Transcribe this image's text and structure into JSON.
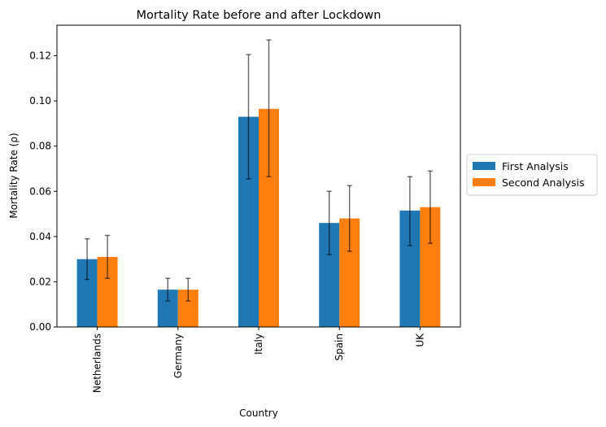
{
  "chart_data": {
    "type": "bar",
    "title": "Mortality Rate before and after Lockdown",
    "xlabel": "Country",
    "ylabel": "Mortality Rate (ρ)",
    "categories": [
      "Netherlands",
      "Germany",
      "Italy",
      "Spain",
      "UK"
    ],
    "series": [
      {
        "name": "First Analysis",
        "color": "#1f77b4",
        "values": [
          0.03,
          0.0165,
          0.093,
          0.046,
          0.0515
        ],
        "err_low": [
          0.021,
          0.0115,
          0.0655,
          0.032,
          0.036
        ],
        "err_high": [
          0.039,
          0.0215,
          0.1205,
          0.06,
          0.0665
        ]
      },
      {
        "name": "Second Analysis",
        "color": "#ff7f0e",
        "values": [
          0.031,
          0.0165,
          0.0965,
          0.048,
          0.053
        ],
        "err_low": [
          0.0215,
          0.0115,
          0.0665,
          0.0335,
          0.037
        ],
        "err_high": [
          0.0405,
          0.0215,
          0.127,
          0.0625,
          0.069
        ]
      }
    ],
    "ylim": [
      0,
      0.1335
    ],
    "yticks": [
      "0.00",
      "0.02",
      "0.04",
      "0.06",
      "0.08",
      "0.10",
      "0.12"
    ],
    "legend_position": "right, outside plot"
  }
}
